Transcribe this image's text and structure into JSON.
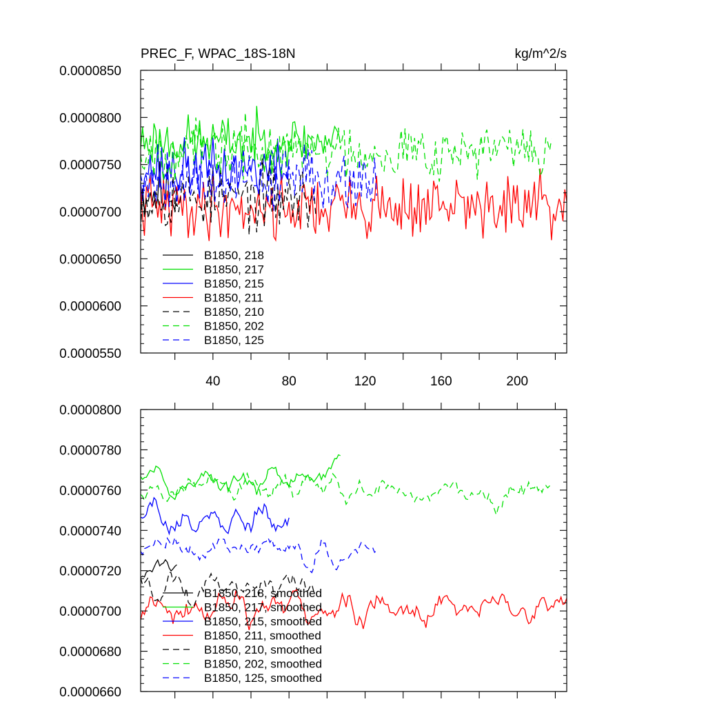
{
  "chart_data": [
    {
      "type": "line",
      "title": "PREC_F, WPAC_18S-18N",
      "units": "kg/m^2/s",
      "ylim": [
        5.5e-05,
        8.5e-05
      ],
      "xlim": [
        2,
        226
      ],
      "yticks": [
        5.5e-05,
        6e-05,
        6.5e-05,
        7e-05,
        7.5e-05,
        8e-05,
        8.5e-05
      ],
      "ytick_labels": [
        "0.0000550",
        "0.0000600",
        "0.0000650",
        "0.0000700",
        "0.0000750",
        "0.0000800",
        "0.0000850"
      ],
      "xticks": [
        40,
        80,
        120,
        160,
        200
      ],
      "xtick_labels": [
        "40",
        "80",
        "120",
        "160",
        "200"
      ],
      "legend_position": "lower-left",
      "series": [
        {
          "name": "B1850, 218",
          "color": "#000000",
          "dash": "solid",
          "x_start": 2,
          "x_end": 21,
          "mean": 7.2e-05,
          "amp": 5e-06,
          "seed": 11
        },
        {
          "name": "B1850, 217",
          "color": "#00e000",
          "dash": "solid",
          "x_start": 2,
          "x_end": 107,
          "mean": 7.75e-05,
          "amp": 4e-06,
          "seed": 23
        },
        {
          "name": "B1850, 215",
          "color": "#0000ff",
          "dash": "solid",
          "x_start": 2,
          "x_end": 80,
          "mean": 7.45e-05,
          "amp": 4.5e-06,
          "seed": 37
        },
        {
          "name": "B1850, 211",
          "color": "#ff0000",
          "dash": "solid",
          "x_start": 2,
          "x_end": 226,
          "mean": 7.05e-05,
          "amp": 5e-06,
          "seed": 41
        },
        {
          "name": "B1850, 210",
          "color": "#000000",
          "dash": "dashed",
          "x_start": 2,
          "x_end": 94,
          "mean": 7.15e-05,
          "amp": 5e-06,
          "seed": 53
        },
        {
          "name": "B1850, 202",
          "color": "#00e000",
          "dash": "dashed",
          "x_start": 2,
          "x_end": 218,
          "mean": 7.65e-05,
          "amp": 4.5e-06,
          "seed": 67
        },
        {
          "name": "B1850, 125",
          "color": "#0000ff",
          "dash": "dashed",
          "x_start": 2,
          "x_end": 126,
          "mean": 7.35e-05,
          "amp": 5e-06,
          "seed": 79
        }
      ]
    },
    {
      "type": "line",
      "ylim": [
        6.6e-05,
        8e-05
      ],
      "xlim": [
        2,
        226
      ],
      "yticks": [
        6.6e-05,
        6.8e-05,
        7e-05,
        7.2e-05,
        7.4e-05,
        7.6e-05,
        7.8e-05,
        8e-05
      ],
      "ytick_labels": [
        "0.0000660",
        "0.0000680",
        "0.0000700",
        "0.0000720",
        "0.0000740",
        "0.0000760",
        "0.0000780",
        "0.0000800"
      ],
      "xticks": [
        40,
        80,
        120,
        160,
        200
      ],
      "legend_position": "lower-left",
      "series": [
        {
          "name": "B1850, 218, smoothed",
          "color": "#000000",
          "dash": "solid",
          "x_start": 2,
          "x_end": 21,
          "mean": 7.22e-05,
          "amp": 1.4e-06,
          "seed": 12
        },
        {
          "name": "B1850, 217, smoothed",
          "color": "#00e000",
          "dash": "solid",
          "x_start": 2,
          "x_end": 107,
          "mean": 7.65e-05,
          "amp": 1.5e-06,
          "seed": 24
        },
        {
          "name": "B1850, 215, smoothed",
          "color": "#0000ff",
          "dash": "solid",
          "x_start": 2,
          "x_end": 80,
          "mean": 7.45e-05,
          "amp": 2e-06,
          "seed": 38
        },
        {
          "name": "B1850, 211, smoothed",
          "color": "#ff0000",
          "dash": "solid",
          "x_start": 2,
          "x_end": 226,
          "mean": 7e-05,
          "amp": 1.8e-06,
          "seed": 42
        },
        {
          "name": "B1850, 210, smoothed",
          "color": "#000000",
          "dash": "dashed",
          "x_start": 2,
          "x_end": 94,
          "mean": 7.12e-05,
          "amp": 1.8e-06,
          "seed": 54
        },
        {
          "name": "B1850, 202, smoothed",
          "color": "#00e000",
          "dash": "dashed",
          "x_start": 2,
          "x_end": 218,
          "mean": 7.6e-05,
          "amp": 1.4e-06,
          "seed": 68
        },
        {
          "name": "B1850, 125, smoothed",
          "color": "#0000ff",
          "dash": "dashed",
          "x_start": 2,
          "x_end": 126,
          "mean": 7.3e-05,
          "amp": 1.4e-06,
          "seed": 80
        }
      ]
    }
  ]
}
